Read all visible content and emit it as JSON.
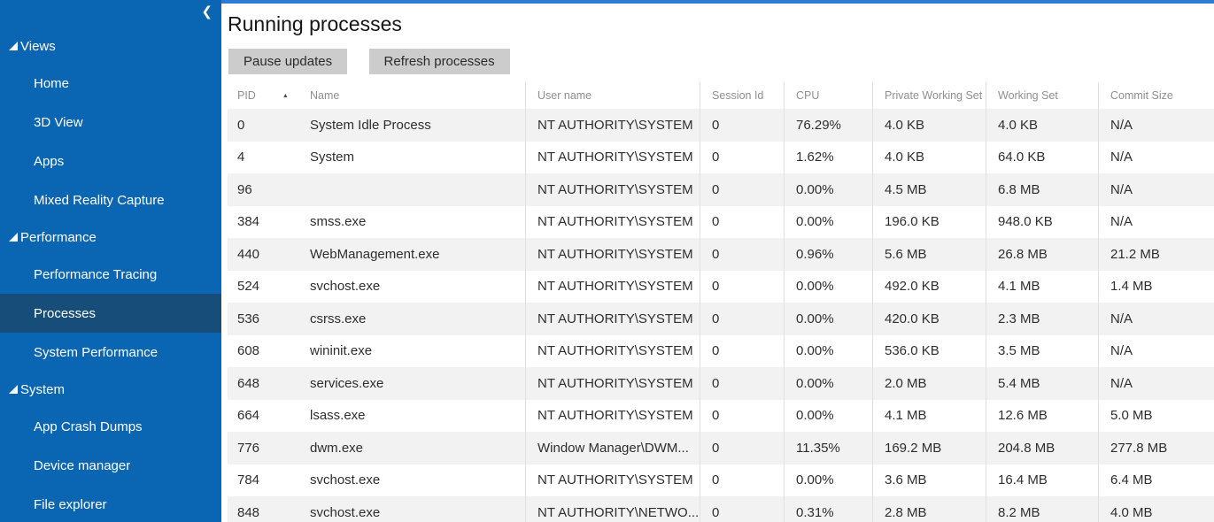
{
  "sidebar": {
    "collapse_icon": "❮",
    "active_item": "Processes",
    "groups": [
      {
        "label": "Views",
        "items": [
          "Home",
          "3D View",
          "Apps",
          "Mixed Reality Capture"
        ]
      },
      {
        "label": "Performance",
        "items": [
          "Performance Tracing",
          "Processes",
          "System Performance"
        ]
      },
      {
        "label": "System",
        "items": [
          "App Crash Dumps",
          "Device manager",
          "File explorer"
        ]
      }
    ]
  },
  "header": {
    "title": "Running processes"
  },
  "toolbar": {
    "pause_label": "Pause updates",
    "refresh_label": "Refresh processes"
  },
  "table": {
    "columns": [
      "PID",
      "Name",
      "User name",
      "Session Id",
      "CPU",
      "Private Working Set",
      "Working Set",
      "Commit Size"
    ],
    "sort": {
      "column": "PID",
      "direction": "asc",
      "icon": "▲"
    },
    "rows": [
      [
        "0",
        "System Idle Process",
        "NT AUTHORITY\\SYSTEM",
        "0",
        "76.29%",
        "4.0 KB",
        "4.0 KB",
        "N/A"
      ],
      [
        "4",
        "System",
        "NT AUTHORITY\\SYSTEM",
        "0",
        "1.62%",
        "4.0 KB",
        "64.0 KB",
        "N/A"
      ],
      [
        "96",
        "",
        "NT AUTHORITY\\SYSTEM",
        "0",
        "0.00%",
        "4.5 MB",
        "6.8 MB",
        "N/A"
      ],
      [
        "384",
        "smss.exe",
        "NT AUTHORITY\\SYSTEM",
        "0",
        "0.00%",
        "196.0 KB",
        "948.0 KB",
        "N/A"
      ],
      [
        "440",
        "WebManagement.exe",
        "NT AUTHORITY\\SYSTEM",
        "0",
        "0.96%",
        "5.6 MB",
        "26.8 MB",
        "21.2 MB"
      ],
      [
        "524",
        "svchost.exe",
        "NT AUTHORITY\\SYSTEM",
        "0",
        "0.00%",
        "492.0 KB",
        "4.1 MB",
        "1.4 MB"
      ],
      [
        "536",
        "csrss.exe",
        "NT AUTHORITY\\SYSTEM",
        "0",
        "0.00%",
        "420.0 KB",
        "2.3 MB",
        "N/A"
      ],
      [
        "608",
        "wininit.exe",
        "NT AUTHORITY\\SYSTEM",
        "0",
        "0.00%",
        "536.0 KB",
        "3.5 MB",
        "N/A"
      ],
      [
        "648",
        "services.exe",
        "NT AUTHORITY\\SYSTEM",
        "0",
        "0.00%",
        "2.0 MB",
        "5.4 MB",
        "N/A"
      ],
      [
        "664",
        "lsass.exe",
        "NT AUTHORITY\\SYSTEM",
        "0",
        "0.00%",
        "4.1 MB",
        "12.6 MB",
        "5.0 MB"
      ],
      [
        "776",
        "dwm.exe",
        "Window Manager\\DWM...",
        "0",
        "11.35%",
        "169.2 MB",
        "204.8 MB",
        "277.8 MB"
      ],
      [
        "784",
        "svchost.exe",
        "NT AUTHORITY\\SYSTEM",
        "0",
        "0.00%",
        "3.6 MB",
        "16.4 MB",
        "6.4 MB"
      ],
      [
        "848",
        "svchost.exe",
        "NT AUTHORITY\\NETWO...",
        "0",
        "0.31%",
        "2.8 MB",
        "8.2 MB",
        "4.0 MB"
      ]
    ]
  },
  "colors": {
    "sidebar_bg": "#0a66b2",
    "sidebar_active_bg": "#164e79",
    "top_accent": "#2b7cd3",
    "button_bg": "#cccccc",
    "row_alt_bg": "#f2f2f2",
    "divider": "#e0e0e0"
  }
}
